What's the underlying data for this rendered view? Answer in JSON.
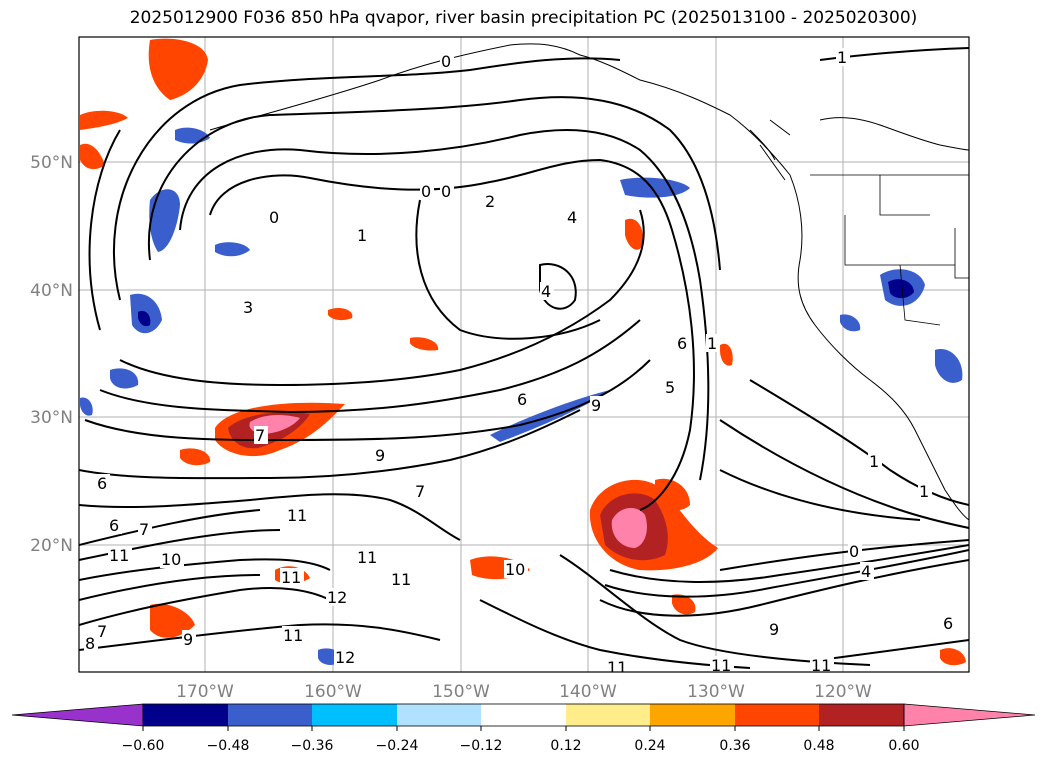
{
  "title": "2025012900 F036 850 hPa qvapor, river basin precipitation PC (2025013100 - 2025020300)",
  "lat_labels": [
    "50°N",
    "40°N",
    "30°N",
    "20°N"
  ],
  "lon_labels": [
    "170°W",
    "160°W",
    "150°W",
    "140°W",
    "130°W",
    "120°W"
  ],
  "contour_labels": [
    "0",
    "0",
    "0",
    "0",
    "1",
    "2",
    "3",
    "4",
    "4",
    "1",
    "1",
    "1",
    "1",
    "6",
    "9",
    "9",
    "7",
    "7",
    "6",
    "6",
    "7",
    "10",
    "11",
    "11",
    "11",
    "11",
    "11",
    "10",
    "12",
    "12",
    "11",
    "9",
    "8",
    "7",
    "11",
    "11",
    "11",
    "0",
    "4",
    "9",
    "6",
    "5",
    "6"
  ],
  "colorbar": {
    "ticks": [
      "−0.60",
      "−0.48",
      "−0.36",
      "−0.24",
      "−0.12",
      "0.12",
      "0.24",
      "0.36",
      "0.48",
      "0.60"
    ],
    "colors": [
      "#9932cc",
      "#00008b",
      "#3a5fcd",
      "#00bfff",
      "#b0e2ff",
      "#ffffff",
      "#ffec8b",
      "#ffa500",
      "#ff4500",
      "#b22222",
      "#ff82ab"
    ]
  }
}
